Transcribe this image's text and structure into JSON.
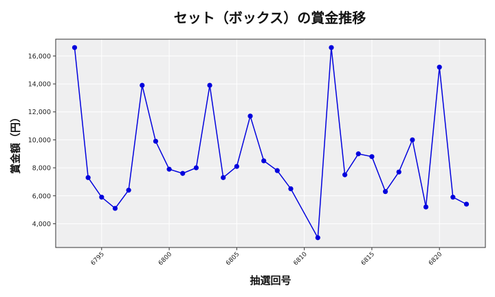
{
  "chart_data": {
    "type": "line",
    "title": "セット（ボックス）の賞金推移",
    "xlabel": "抽選回号",
    "ylabel": "賞金額（円）",
    "x": [
      6793,
      6794,
      6795,
      6796,
      6797,
      6798,
      6799,
      6800,
      6801,
      6802,
      6803,
      6804,
      6805,
      6806,
      6807,
      6808,
      6809,
      6811,
      6812,
      6813,
      6814,
      6815,
      6816,
      6817,
      6818,
      6819,
      6820,
      6821,
      6822
    ],
    "values": [
      16600,
      7300,
      5900,
      5100,
      6400,
      13900,
      9900,
      7900,
      7600,
      8000,
      13900,
      7300,
      8100,
      11700,
      8500,
      7800,
      6500,
      3000,
      16600,
      7500,
      9000,
      8800,
      6300,
      7700,
      10000,
      5200,
      15200,
      5900,
      5400
    ],
    "xticks": [
      6795,
      6800,
      6805,
      6810,
      6815,
      6820
    ],
    "yticks": [
      4000,
      6000,
      8000,
      10000,
      12000,
      14000,
      16000
    ],
    "ytick_labels": [
      "4,000",
      "6,000",
      "8,000",
      "10,000",
      "12,000",
      "14,000",
      "16,000"
    ],
    "xlim": [
      6791.6,
      6823.4
    ],
    "ylim": [
      2300,
      17200
    ],
    "grid": true,
    "legend": null,
    "series_color": "#0000dd",
    "background": "#efeff0"
  }
}
